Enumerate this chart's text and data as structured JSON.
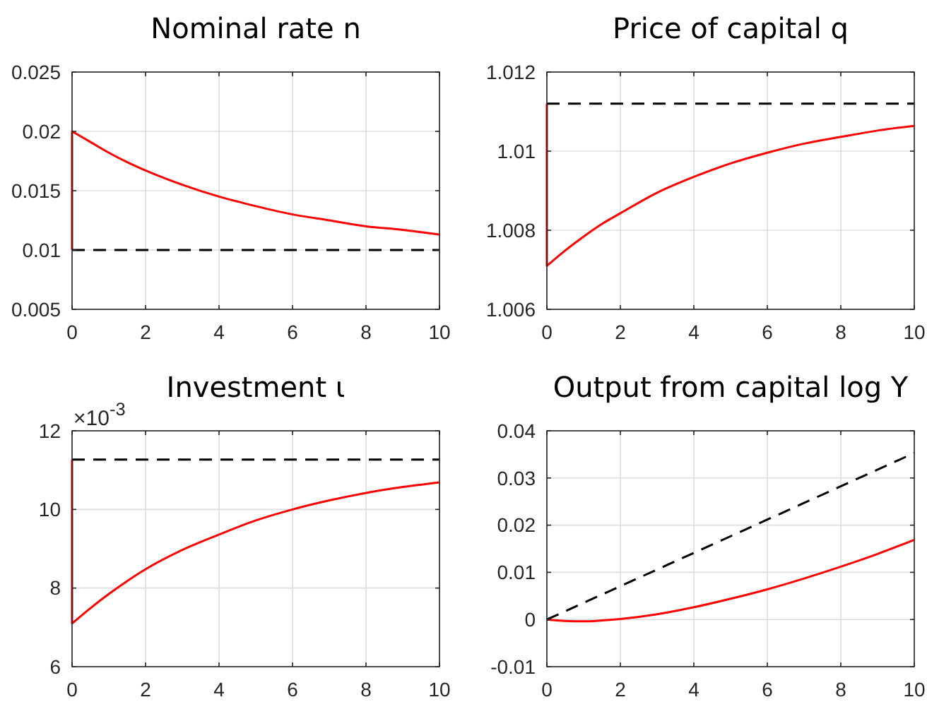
{
  "chart_data": [
    {
      "type": "line",
      "title": "Nominal rate n",
      "xlim": [
        0,
        10
      ],
      "xticks": [
        0,
        2,
        4,
        6,
        8,
        10
      ],
      "ylim": [
        0.005,
        0.025
      ],
      "yticks": [
        0.005,
        0.01,
        0.015,
        0.02,
        0.025
      ],
      "grid": true,
      "series": [
        {
          "color": "#ff0000",
          "line_style": "solid",
          "x": [
            0,
            0,
            0.5,
            1,
            1.5,
            2,
            3,
            4,
            5,
            6,
            7,
            8,
            9,
            10
          ],
          "values": [
            0.01,
            0.02,
            0.0191,
            0.0182,
            0.0174,
            0.0167,
            0.0155,
            0.0145,
            0.0137,
            0.013,
            0.0125,
            0.012,
            0.0117,
            0.0113
          ]
        },
        {
          "color": "#000000",
          "line_style": "dashed",
          "x": [
            0,
            10
          ],
          "values": [
            0.01,
            0.01
          ]
        }
      ]
    },
    {
      "type": "line",
      "title": "Price of capital q",
      "xlim": [
        0,
        10
      ],
      "xticks": [
        0,
        2,
        4,
        6,
        8,
        10
      ],
      "ylim": [
        1.006,
        1.012
      ],
      "yticks": [
        1.006,
        1.008,
        1.01,
        1.012
      ],
      "grid": true,
      "series": [
        {
          "color": "#ff0000",
          "line_style": "solid",
          "x": [
            0,
            0,
            0.5,
            1,
            1.5,
            2,
            3,
            4,
            5,
            6,
            7,
            8,
            9,
            10
          ],
          "values": [
            1.0112,
            1.0071,
            1.00749,
            1.00784,
            1.00816,
            1.00843,
            1.00895,
            1.00935,
            1.00969,
            1.00996,
            1.01019,
            1.01036,
            1.01052,
            1.01064
          ]
        },
        {
          "color": "#000000",
          "line_style": "dashed",
          "x": [
            0,
            10
          ],
          "values": [
            1.0112,
            1.0112
          ]
        }
      ]
    },
    {
      "type": "line",
      "title": "Investment ι",
      "annotations": [
        "×10$^{-3}$"
      ],
      "xlim": [
        0,
        10
      ],
      "xticks": [
        0,
        2,
        4,
        6,
        8,
        10
      ],
      "ylim": [
        6,
        12
      ],
      "yticks": [
        6,
        8,
        10,
        12
      ],
      "grid": true,
      "series": [
        {
          "color": "#ff0000",
          "line_style": "solid",
          "x": [
            0,
            0,
            0.5,
            1,
            1.5,
            2,
            3,
            4,
            5,
            6,
            7,
            8,
            9,
            10
          ],
          "values": [
            11.27,
            7.1,
            7.49,
            7.85,
            8.18,
            8.48,
            8.97,
            9.36,
            9.72,
            10.0,
            10.23,
            10.42,
            10.57,
            10.69
          ]
        },
        {
          "color": "#000000",
          "line_style": "dashed",
          "x": [
            0,
            10
          ],
          "values": [
            11.27,
            11.27
          ]
        }
      ]
    },
    {
      "type": "line",
      "title": "Output from capital log Y",
      "xlim": [
        0,
        10
      ],
      "xticks": [
        0,
        2,
        4,
        6,
        8,
        10
      ],
      "ylim": [
        -0.01,
        0.04
      ],
      "yticks": [
        -0.01,
        0,
        0.01,
        0.02,
        0.03,
        0.04
      ],
      "grid": true,
      "series": [
        {
          "color": "#ff0000",
          "line_style": "solid",
          "x": [
            0,
            0.5,
            1,
            1.5,
            2,
            3,
            4,
            5,
            6,
            7,
            8,
            9,
            10
          ],
          "values": [
            0,
            -0.0003,
            -0.0004,
            -0.0002,
            0.0001,
            0.0011,
            0.0026,
            0.0044,
            0.0064,
            0.0087,
            0.0112,
            0.0139,
            0.0169
          ]
        },
        {
          "color": "#000000",
          "line_style": "dashed",
          "x": [
            0,
            10
          ],
          "values": [
            0,
            0.0353
          ]
        }
      ]
    }
  ]
}
